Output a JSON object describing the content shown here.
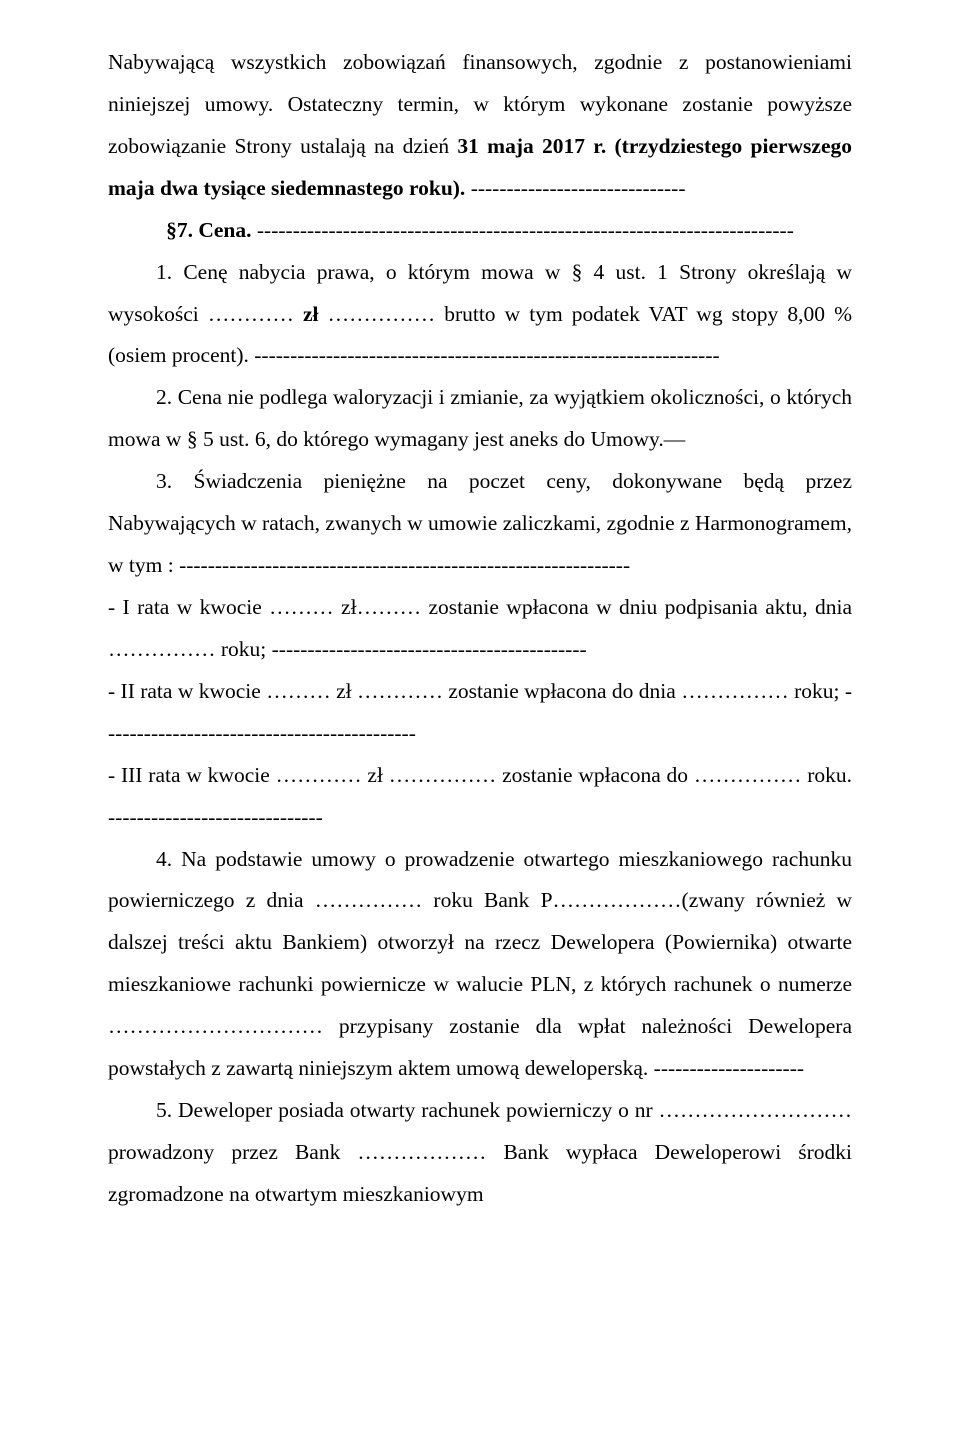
{
  "p1": "Nabywającą wszystkich zobowiązań finansowych, zgodnie z postanowieniami niniejszej umowy. Ostateczny termin, w którym wykonane zostanie powyższe zobowiązanie Strony ustalają na dzień ",
  "p1_bold": "31 maja 2017 r. (trzydziestego pierwszego maja dwa tysiące siedemnastego roku). ",
  "p1_dashes": "------------------------------",
  "section_label": "§7. Cena. ",
  "section_dashes": "---------------------------------------------------------------------------",
  "p2a": "1. Cenę nabycia prawa, o którym mowa w § 4 ust. 1 Strony określają w wysokości ………… ",
  "p2b": "zł",
  "p2c": " …………… brutto w tym podatek VAT wg stopy 8,00 % (osiem procent). -----------------------------------------------------------------",
  "p3": "2. Cena nie podlega waloryzacji i zmianie, za wyjątkiem okoliczności, o których mowa w § 5 ust. 6, do którego wymagany jest aneks do Umowy.—",
  "p4": "3. Świadczenia pieniężne na poczet ceny, dokonywane będą przez Nabywających w ratach, zwanych w umowie zaliczkami, zgodnie z Harmonogramem, w tym : ---------------------------------------------------------------",
  "p5": "- I rata w kwocie ……… zł……… zostanie wpłacona w dniu podpisania aktu, dnia …………… roku; --------------------------------------------",
  "p6": "- II rata w kwocie ……… zł ………… zostanie wpłacona do dnia …………… roku; --------------------------------------------",
  "p7": "- III rata w kwocie ………… zł …………… zostanie wpłacona do …………… roku. ------------------------------",
  "p8": "4. Na podstawie umowy o prowadzenie otwartego mieszkaniowego rachunku powierniczego z dnia …………… roku Bank P………………(zwany również w dalszej treści aktu Bankiem) otworzył na rzecz Dewelopera (Powiernika) otwarte mieszkaniowe rachunki powiernicze w walucie PLN, z których rachunek o numerze ………………………… przypisany zostanie dla wpłat należności Dewelopera powstałych z zawartą niniejszym aktem umową deweloperską. ---------------------",
  "p9": "5. Deweloper posiada otwarty rachunek powierniczy o nr ……………………… prowadzony przez Bank ……………… Bank wypłaca Deweloperowi środki zgromadzone na otwartym mieszkaniowym"
}
